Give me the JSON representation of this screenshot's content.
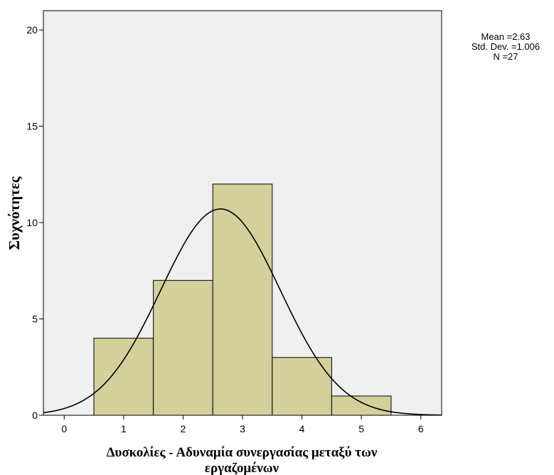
{
  "chart_data": {
    "type": "bar",
    "subtype": "histogram",
    "bins": [
      {
        "x0": 0.5,
        "x1": 1.5,
        "count": 4
      },
      {
        "x0": 1.5,
        "x1": 2.5,
        "count": 7
      },
      {
        "x0": 2.5,
        "x1": 3.5,
        "count": 12
      },
      {
        "x0": 3.5,
        "x1": 4.5,
        "count": 3
      },
      {
        "x0": 4.5,
        "x1": 5.5,
        "count": 1
      }
    ],
    "normal_curve": {
      "mean": 2.63,
      "std_dev": 1.006,
      "n": 27,
      "bin_width": 1
    },
    "stats_lines": [
      "Mean =2.63",
      "Std. Dev. =1.006",
      "N =27"
    ],
    "xlabel_lines": [
      "Δυσκολίες - Αδυναμία συνεργασίας μεταξύ των",
      "εργαζομένων"
    ],
    "ylabel": "Συχνότητες",
    "xlim": [
      -0.35,
      6.35
    ],
    "ylim": [
      0,
      21
    ],
    "xticks": [
      "0",
      "1",
      "2",
      "3",
      "4",
      "5",
      "6"
    ],
    "yticks": [
      "0",
      "5",
      "10",
      "15",
      "20"
    ],
    "grid": false,
    "colors": {
      "plot_background": "#f0f0f0",
      "bar_fill": "#d3d09c",
      "bar_stroke": "#000000",
      "curve": "#000000"
    }
  }
}
